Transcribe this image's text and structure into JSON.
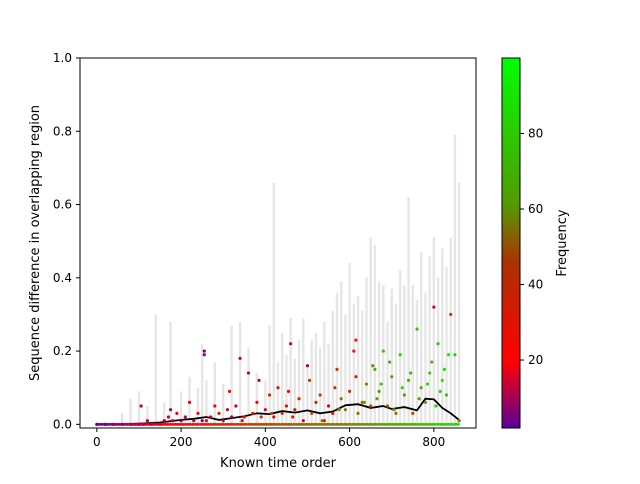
{
  "chart_data": {
    "type": "scatter",
    "xlabel": "Known time order",
    "ylabel": "Sequence difference in overlapping region",
    "xlim": [
      -40,
      900
    ],
    "ylim": [
      -0.01,
      1.0
    ],
    "xticks": [
      0,
      200,
      400,
      600,
      800
    ],
    "xtick_labels": [
      "0",
      "200",
      "400",
      "600",
      "800"
    ],
    "yticks": [
      0.0,
      0.2,
      0.4,
      0.6,
      0.8,
      1.0
    ],
    "ytick_labels": [
      "0.0",
      "0.2",
      "0.4",
      "0.6",
      "0.8",
      "1.0"
    ],
    "grid": false,
    "colorbar": {
      "label": "Frequency",
      "range": [
        2,
        100
      ],
      "ticks": [
        20,
        40,
        60,
        80
      ],
      "tick_labels": [
        "20",
        "40",
        "60",
        "80"
      ],
      "colors": [
        "#5a0099",
        "#ff0000",
        "#00ff00"
      ]
    },
    "background_bars": {
      "color": "#e6e6e6",
      "x": [
        60,
        80,
        100,
        120,
        140,
        160,
        175,
        200,
        220,
        240,
        250,
        260,
        280,
        300,
        320,
        340,
        360,
        380,
        400,
        410,
        420,
        430,
        440,
        450,
        460,
        470,
        480,
        490,
        500,
        510,
        520,
        530,
        540,
        550,
        560,
        570,
        580,
        590,
        600,
        610,
        620,
        630,
        640,
        650,
        660,
        670,
        680,
        690,
        700,
        710,
        720,
        730,
        740,
        750,
        760,
        770,
        780,
        790,
        800,
        810,
        820,
        830,
        840,
        850,
        860
      ],
      "values": [
        0.03,
        0.07,
        0.09,
        0.05,
        0.3,
        0.06,
        0.28,
        0.09,
        0.13,
        0.1,
        0.22,
        0.12,
        0.17,
        0.11,
        0.27,
        0.28,
        0.21,
        0.14,
        0.12,
        0.27,
        0.66,
        0.17,
        0.25,
        0.19,
        0.29,
        0.18,
        0.23,
        0.29,
        0.16,
        0.23,
        0.25,
        0.21,
        0.28,
        0.22,
        0.31,
        0.36,
        0.39,
        0.3,
        0.44,
        0.33,
        0.35,
        0.31,
        0.4,
        0.51,
        0.49,
        0.39,
        0.38,
        0.28,
        0.37,
        0.33,
        0.42,
        0.38,
        0.62,
        0.38,
        0.34,
        0.47,
        0.36,
        0.46,
        0.51,
        0.4,
        0.48,
        0.43,
        0.51,
        0.79,
        0.66
      ]
    },
    "series": [
      {
        "type": "line",
        "color": "#000000",
        "x": [
          0,
          50,
          100,
          150,
          200,
          230,
          260,
          290,
          320,
          350,
          380,
          410,
          440,
          470,
          500,
          530,
          560,
          590,
          620,
          650,
          680,
          700,
          730,
          760,
          780,
          800,
          820,
          840,
          860
        ],
        "y": [
          0.0,
          0.0,
          0.002,
          0.005,
          0.012,
          0.015,
          0.02,
          0.012,
          0.017,
          0.022,
          0.03,
          0.028,
          0.036,
          0.032,
          0.038,
          0.03,
          0.035,
          0.052,
          0.055,
          0.045,
          0.05,
          0.042,
          0.047,
          0.038,
          0.07,
          0.068,
          0.045,
          0.03,
          0.012
        ]
      },
      {
        "type": "scatter",
        "x": [
          0,
          20,
          40,
          60,
          80,
          90,
          100,
          110,
          120,
          130,
          150,
          160,
          170,
          180,
          190,
          200,
          210,
          220,
          230,
          240,
          250,
          255,
          260,
          270,
          280,
          290,
          300,
          310,
          320,
          330,
          340,
          350,
          360,
          370,
          380,
          390,
          400,
          410,
          420,
          430,
          440,
          450,
          460,
          470,
          480,
          490,
          500,
          510,
          520,
          530,
          540,
          550,
          560,
          570,
          580,
          590,
          600,
          610,
          615,
          620,
          630,
          640,
          650,
          660,
          670,
          680,
          690,
          700,
          710,
          720,
          730,
          740,
          750,
          760,
          770,
          780,
          790,
          800,
          810,
          820,
          830,
          840,
          850,
          860,
          105,
          175,
          255,
          315,
          345,
          385,
          415,
          455,
          465,
          505,
          535,
          565,
          575,
          615,
          635,
          655,
          665,
          675,
          695,
          705,
          725,
          745,
          765,
          785,
          795,
          805,
          815,
          825,
          835
        ],
        "y": [
          0,
          0,
          0,
          0,
          0,
          0,
          0,
          0,
          0.01,
          0,
          0,
          0.01,
          0.02,
          0.01,
          0.03,
          0.01,
          0.02,
          0.06,
          0.01,
          0.03,
          0.01,
          0.2,
          0.01,
          0.02,
          0.05,
          0.03,
          0.01,
          0.04,
          0.02,
          0.05,
          0.18,
          0.02,
          0.14,
          0.03,
          0.06,
          0.02,
          0.04,
          0.08,
          0.02,
          0.1,
          0.03,
          0.05,
          0.22,
          0.04,
          0.07,
          0.01,
          0.16,
          0.03,
          0.06,
          0.08,
          0.01,
          0.05,
          0.03,
          0.15,
          0.07,
          0.04,
          0.09,
          0.2,
          0.23,
          0.03,
          0.06,
          0.11,
          0.05,
          0.15,
          0.09,
          0.2,
          0.05,
          0.13,
          0.03,
          0.19,
          0.08,
          0.12,
          0.03,
          0.26,
          0.1,
          0.06,
          0.14,
          0.32,
          0.22,
          0.12,
          0.08,
          0.3,
          0.19,
          0.01,
          0.05,
          0.04,
          0.19,
          0.09,
          0.01,
          0.12,
          0.03,
          0.09,
          0.02,
          0.12,
          0.01,
          0.1,
          0.04,
          0.13,
          0.06,
          0.16,
          0.07,
          0.11,
          0.17,
          0.04,
          0.1,
          0.14,
          0.07,
          0.11,
          0.17,
          0.05,
          0.09,
          0.15,
          0.19
        ],
        "frequency": [
          3,
          5,
          4,
          6,
          3,
          8,
          5,
          12,
          14,
          9,
          4,
          10,
          14,
          11,
          16,
          7,
          13,
          18,
          12,
          22,
          6,
          5,
          18,
          12,
          20,
          30,
          15,
          16,
          10,
          12,
          15,
          22,
          14,
          28,
          22,
          35,
          15,
          30,
          18,
          25,
          35,
          24,
          16,
          28,
          30,
          14,
          12,
          45,
          32,
          40,
          20,
          16,
          25,
          35,
          60,
          55,
          35,
          28,
          28,
          55,
          50,
          60,
          45,
          75,
          65,
          80,
          45,
          70,
          55,
          85,
          65,
          72,
          40,
          80,
          75,
          70,
          85,
          15,
          78,
          90,
          80,
          35,
          85,
          60,
          12,
          10,
          8,
          20,
          18,
          12,
          45,
          20,
          25,
          40,
          55,
          35,
          65,
          30,
          70,
          58,
          68,
          82,
          72,
          60,
          88,
          78,
          66,
          90,
          74,
          82,
          86,
          92,
          95
        ],
        "note": "marker color encodes frequency via colorbar"
      }
    ]
  }
}
